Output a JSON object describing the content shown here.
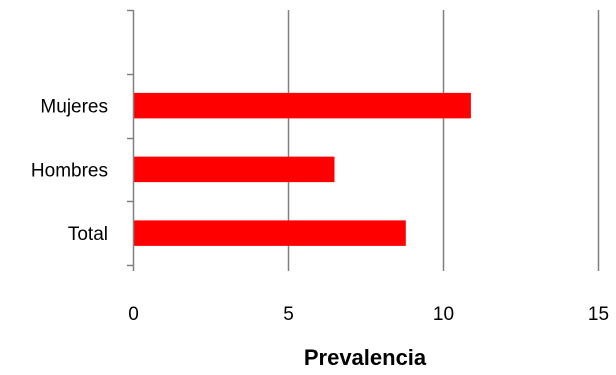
{
  "chart_data": {
    "type": "bar",
    "orientation": "horizontal",
    "categories": [
      "Total",
      "Hombres",
      "Mujeres"
    ],
    "values": [
      8.8,
      6.5,
      10.9
    ],
    "title": "",
    "xlabel": "Prevalencia",
    "ylabel": "",
    "xlim": [
      0,
      15
    ],
    "x_ticks": [
      "0",
      "5",
      "10",
      "15"
    ],
    "grid": "vertical",
    "legend": "none",
    "bar_color": "#ff0000",
    "gridline_color": "#808080",
    "axis_color": "#808080"
  }
}
